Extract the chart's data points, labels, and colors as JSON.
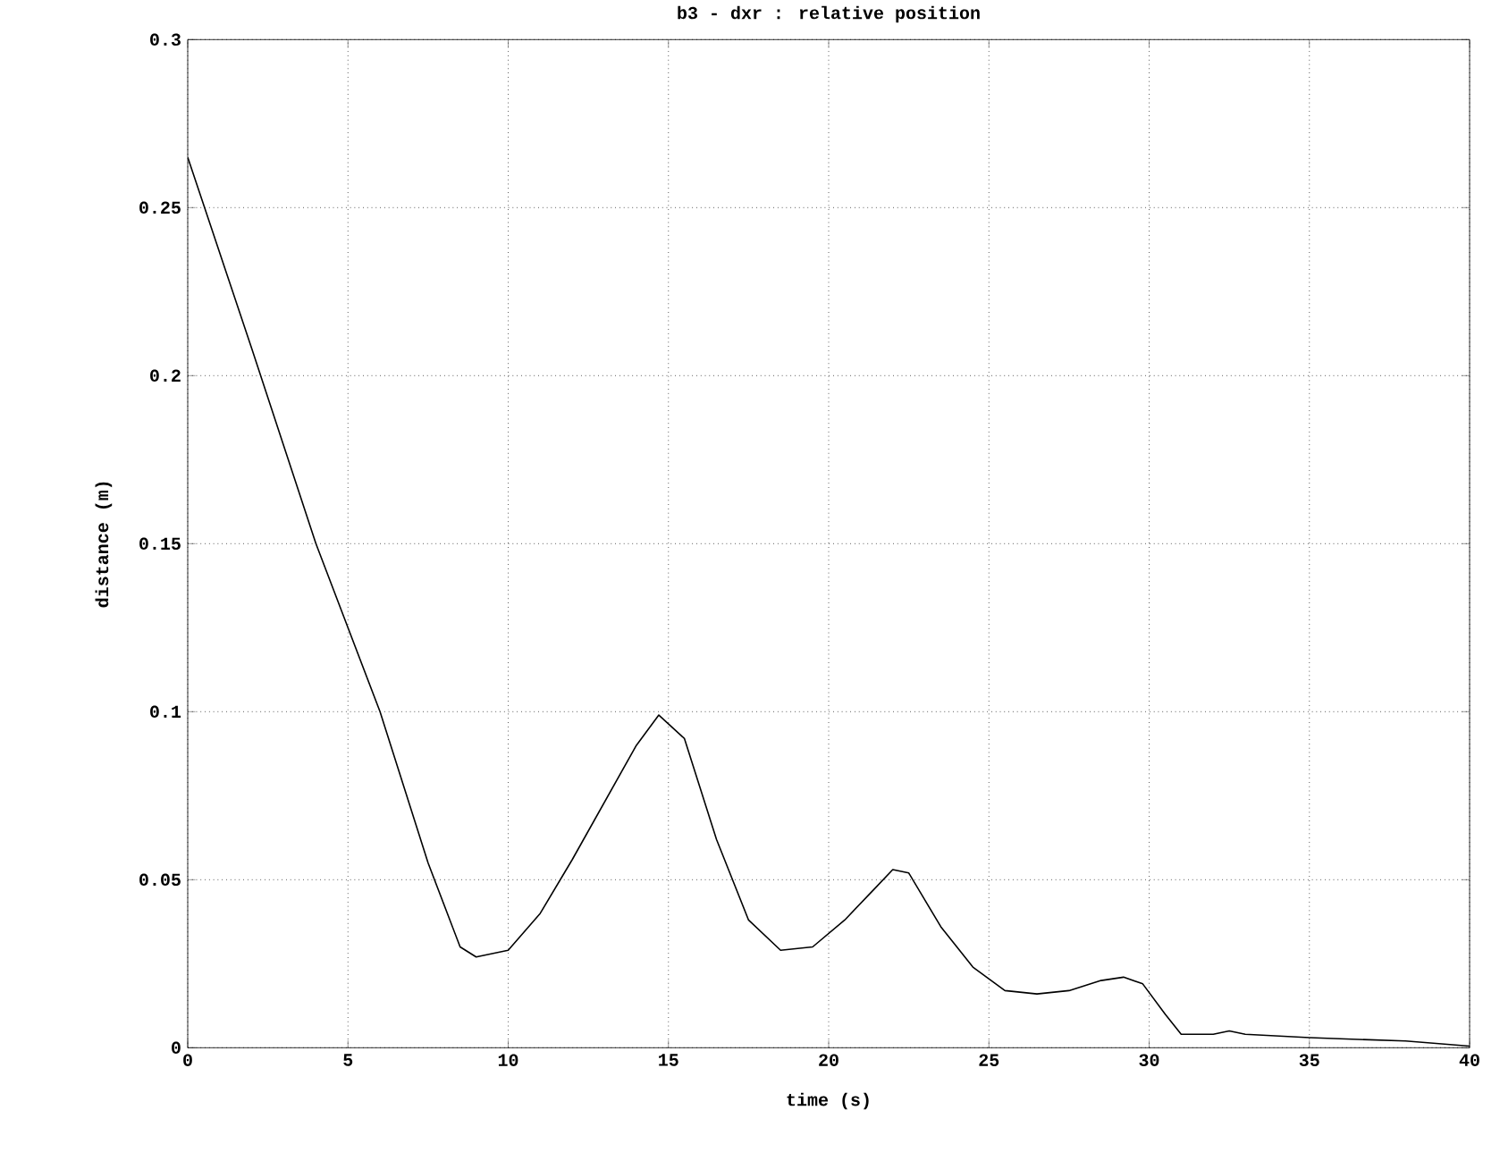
{
  "chart_data": {
    "type": "line",
    "title": "b3 - dxr : relative position",
    "xlabel": "time (s)",
    "ylabel": "distance (m)",
    "x": [
      0,
      2,
      4,
      6,
      7.5,
      8.5,
      9,
      10,
      11,
      12,
      13,
      14,
      14.7,
      15.5,
      16.5,
      17.5,
      18.5,
      19.5,
      20.5,
      21.5,
      22,
      22.5,
      23.5,
      24.5,
      25.5,
      26.5,
      27.5,
      28.5,
      29.2,
      29.8,
      30.5,
      31,
      32,
      32.5,
      33,
      35,
      38,
      40
    ],
    "series": [
      {
        "color": "#000000",
        "values": [
          0.265,
          0.208,
          0.15,
          0.1,
          0.055,
          0.03,
          0.027,
          0.029,
          0.04,
          0.056,
          0.073,
          0.09,
          0.099,
          0.092,
          0.062,
          0.038,
          0.029,
          0.03,
          0.038,
          0.048,
          0.053,
          0.052,
          0.036,
          0.024,
          0.017,
          0.016,
          0.017,
          0.02,
          0.021,
          0.019,
          0.01,
          0.004,
          0.004,
          0.005,
          0.004,
          0.003,
          0.002,
          0.0005
        ]
      }
    ],
    "xlim": [
      0,
      40
    ],
    "ylim": [
      0,
      0.3
    ],
    "xticks": [
      0,
      5,
      10,
      15,
      20,
      25,
      30,
      35,
      40
    ],
    "yticks": [
      0,
      0.05,
      0.1,
      0.15,
      0.2,
      0.25,
      0.3
    ],
    "grid": true,
    "marker": "none",
    "line_style": "solid"
  }
}
